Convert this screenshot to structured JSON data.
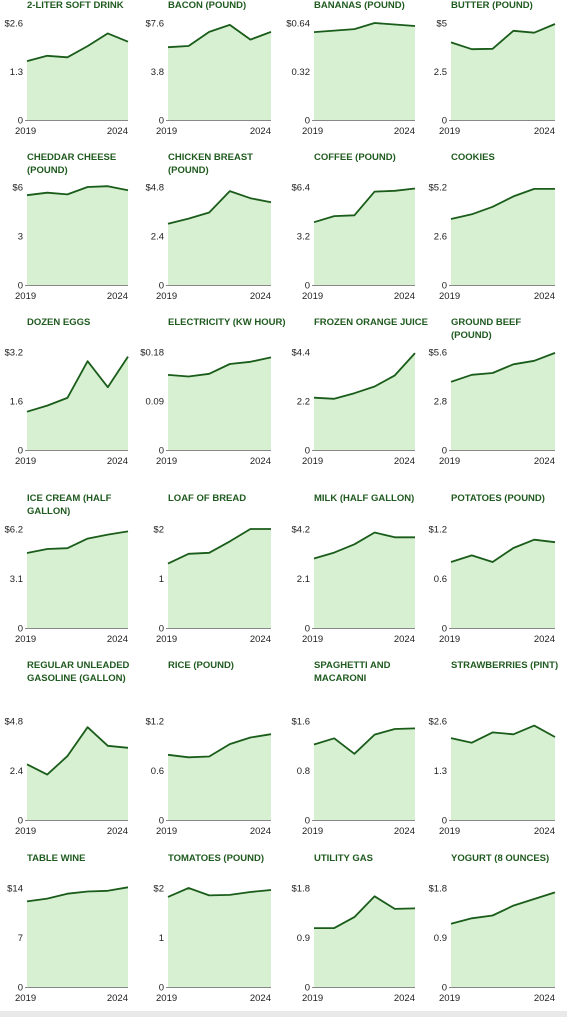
{
  "colors": {
    "line": "#1a5c1a",
    "fill": "#d7f0d2",
    "title": "#1f5a1f",
    "axis": "#888888",
    "text": "#222222"
  },
  "chart_data": [
    {
      "type": "area",
      "title": "2-liter soft drink",
      "x": [
        2019,
        2020,
        2021,
        2022,
        2023,
        2024
      ],
      "values": [
        1.58,
        1.72,
        1.68,
        1.98,
        2.32,
        2.1
      ],
      "ylim": [
        0,
        2.6
      ],
      "yticks": [
        "0",
        "1.3",
        "$2.6"
      ],
      "xticks": [
        "2019",
        "2024"
      ]
    },
    {
      "type": "area",
      "title": "Bacon (pound)",
      "x": [
        2019,
        2020,
        2021,
        2022,
        2023,
        2024
      ],
      "values": [
        5.7,
        5.8,
        6.9,
        7.45,
        6.3,
        6.9
      ],
      "ylim": [
        0,
        7.6
      ],
      "yticks": [
        "0",
        "3.8",
        "$7.6"
      ],
      "xticks": [
        "2019",
        "2024"
      ]
    },
    {
      "type": "area",
      "title": "Bananas (pound)",
      "x": [
        2019,
        2020,
        2021,
        2022,
        2023,
        2024
      ],
      "values": [
        0.58,
        0.59,
        0.6,
        0.64,
        0.63,
        0.62
      ],
      "ylim": [
        0,
        0.64
      ],
      "yticks": [
        "0",
        "0.32",
        "$0.64"
      ],
      "xticks": [
        "2019",
        "2024"
      ]
    },
    {
      "type": "area",
      "title": "Butter (pound)",
      "x": [
        2019,
        2020,
        2021,
        2022,
        2023,
        2024
      ],
      "values": [
        4.0,
        3.65,
        3.67,
        4.6,
        4.5,
        4.95
      ],
      "ylim": [
        0,
        5
      ],
      "yticks": [
        "0",
        "2.5",
        "$5"
      ],
      "xticks": [
        "2019",
        "2024"
      ]
    },
    {
      "type": "area",
      "title": "Cheddar cheese (pound)",
      "x": [
        2019,
        2020,
        2021,
        2022,
        2023,
        2024
      ],
      "values": [
        5.5,
        5.65,
        5.55,
        6.0,
        6.05,
        5.8
      ],
      "ylim": [
        0,
        6
      ],
      "yticks": [
        "0",
        "3",
        "$6"
      ],
      "xticks": [
        "2019",
        "2024"
      ]
    },
    {
      "type": "area",
      "title": "Chicken breast (pound)",
      "x": [
        2019,
        2020,
        2021,
        2022,
        2023,
        2024
      ],
      "values": [
        3.0,
        3.25,
        3.55,
        4.6,
        4.25,
        4.05
      ],
      "ylim": [
        0,
        4.8
      ],
      "yticks": [
        "0",
        "2.4",
        "$4.8"
      ],
      "xticks": [
        "2019",
        "2024"
      ]
    },
    {
      "type": "area",
      "title": "Coffee (pound)",
      "x": [
        2019,
        2020,
        2021,
        2022,
        2023,
        2024
      ],
      "values": [
        4.1,
        4.5,
        4.55,
        6.1,
        6.15,
        6.3
      ],
      "ylim": [
        0,
        6.4
      ],
      "yticks": [
        "0",
        "3.2",
        "$6.4"
      ],
      "xticks": [
        "2019",
        "2024"
      ]
    },
    {
      "type": "area",
      "title": "Cookies",
      "x": [
        2019,
        2020,
        2021,
        2022,
        2023,
        2024
      ],
      "values": [
        3.5,
        3.75,
        4.15,
        4.7,
        5.1,
        5.1
      ],
      "ylim": [
        0,
        5.2
      ],
      "yticks": [
        "0",
        "2.6",
        "$5.2"
      ],
      "xticks": [
        "2019",
        "2024"
      ]
    },
    {
      "type": "area",
      "title": "Dozen eggs",
      "x": [
        2019,
        2020,
        2021,
        2022,
        2023,
        2024
      ],
      "values": [
        1.25,
        1.45,
        1.7,
        2.9,
        2.05,
        3.05
      ],
      "ylim": [
        0,
        3.2
      ],
      "yticks": [
        "0",
        "1.6",
        "$3.2"
      ],
      "xticks": [
        "2019",
        "2024"
      ]
    },
    {
      "type": "area",
      "title": "Electricity (kW hour)",
      "x": [
        2019,
        2020,
        2021,
        2022,
        2023,
        2024
      ],
      "values": [
        0.138,
        0.135,
        0.14,
        0.158,
        0.162,
        0.17
      ],
      "ylim": [
        0,
        0.18
      ],
      "yticks": [
        "0",
        "0.09",
        "$0.18"
      ],
      "xticks": [
        "2019",
        "2024"
      ]
    },
    {
      "type": "area",
      "title": "Frozen orange juice",
      "x": [
        2019,
        2020,
        2021,
        2022,
        2023,
        2024
      ],
      "values": [
        2.35,
        2.3,
        2.55,
        2.85,
        3.35,
        4.35
      ],
      "ylim": [
        0,
        4.4
      ],
      "yticks": [
        "0",
        "2.2",
        "$4.4"
      ],
      "xticks": [
        "2019",
        "2024"
      ]
    },
    {
      "type": "area",
      "title": "Ground beef (pound)",
      "x": [
        2019,
        2020,
        2021,
        2022,
        2023,
        2024
      ],
      "values": [
        3.9,
        4.3,
        4.4,
        4.9,
        5.1,
        5.55
      ],
      "ylim": [
        0,
        5.6
      ],
      "yticks": [
        "0",
        "2.8",
        "$5.6"
      ],
      "xticks": [
        "2019",
        "2024"
      ]
    },
    {
      "type": "area",
      "title": "Ice cream (half gallon)",
      "x": [
        2019,
        2020,
        2021,
        2022,
        2023,
        2024
      ],
      "values": [
        4.7,
        4.95,
        5.0,
        5.6,
        5.85,
        6.05
      ],
      "ylim": [
        0,
        6.2
      ],
      "yticks": [
        "0",
        "3.1",
        "$6.2"
      ],
      "xticks": [
        "2019",
        "2024"
      ]
    },
    {
      "type": "area",
      "title": "Loaf of bread",
      "x": [
        2019,
        2020,
        2021,
        2022,
        2023,
        2024
      ],
      "values": [
        1.3,
        1.5,
        1.52,
        1.75,
        2.0,
        2.0
      ],
      "ylim": [
        0,
        2
      ],
      "yticks": [
        "0",
        "1",
        "$2"
      ],
      "xticks": [
        "2019",
        "2024"
      ]
    },
    {
      "type": "area",
      "title": "Milk (half gallon)",
      "x": [
        2019,
        2020,
        2021,
        2022,
        2023,
        2024
      ],
      "values": [
        2.95,
        3.2,
        3.55,
        4.05,
        3.85,
        3.85
      ],
      "ylim": [
        0,
        4.2
      ],
      "yticks": [
        "0",
        "2.1",
        "$4.2"
      ],
      "xticks": [
        "2019",
        "2024"
      ]
    },
    {
      "type": "area",
      "title": "Potatoes (pound)",
      "x": [
        2019,
        2020,
        2021,
        2022,
        2023,
        2024
      ],
      "values": [
        0.8,
        0.88,
        0.8,
        0.97,
        1.07,
        1.04
      ],
      "ylim": [
        0,
        1.2
      ],
      "yticks": [
        "0",
        "0.6",
        "$1.2"
      ],
      "xticks": [
        "2019",
        "2024"
      ]
    },
    {
      "type": "area",
      "title": "Regular unleaded gasoline (gallon)",
      "x": [
        2019,
        2020,
        2021,
        2022,
        2023,
        2024
      ],
      "values": [
        2.7,
        2.2,
        3.1,
        4.5,
        3.6,
        3.5
      ],
      "ylim": [
        0,
        4.8
      ],
      "yticks": [
        "0",
        "2.4",
        "$4.8"
      ],
      "xticks": [
        "2019",
        "2024"
      ]
    },
    {
      "type": "area",
      "title": "Rice (pound)",
      "x": [
        2019,
        2020,
        2021,
        2022,
        2023,
        2024
      ],
      "values": [
        0.79,
        0.76,
        0.77,
        0.92,
        1.0,
        1.04
      ],
      "ylim": [
        0,
        1.2
      ],
      "yticks": [
        "0",
        "0.6",
        "$1.2"
      ],
      "xticks": [
        "2019",
        "2024"
      ]
    },
    {
      "type": "area",
      "title": "Spaghetti and macaroni",
      "x": [
        2019,
        2020,
        2021,
        2022,
        2023,
        2024
      ],
      "values": [
        1.22,
        1.32,
        1.07,
        1.38,
        1.47,
        1.48
      ],
      "ylim": [
        0,
        1.6
      ],
      "yticks": [
        "0",
        "0.8",
        "$1.6"
      ],
      "xticks": [
        "2019",
        "2024"
      ]
    },
    {
      "type": "area",
      "title": "Strawberries (pint)",
      "x": [
        2019,
        2020,
        2021,
        2022,
        2023,
        2024
      ],
      "values": [
        2.15,
        2.03,
        2.3,
        2.25,
        2.48,
        2.18
      ],
      "ylim": [
        0,
        2.6
      ],
      "yticks": [
        "0",
        "1.3",
        "$2.6"
      ],
      "xticks": [
        "2019",
        "2024"
      ]
    },
    {
      "type": "area",
      "title": "Table wine",
      "x": [
        2019,
        2020,
        2021,
        2022,
        2023,
        2024
      ],
      "values": [
        12.1,
        12.5,
        13.2,
        13.5,
        13.6,
        14.1
      ],
      "ylim": [
        0,
        14
      ],
      "yticks": [
        "0",
        "7",
        "$14"
      ],
      "xticks": [
        "2019",
        "2024"
      ]
    },
    {
      "type": "area",
      "title": "Tomatoes (pound)",
      "x": [
        2019,
        2020,
        2021,
        2022,
        2023,
        2024
      ],
      "values": [
        1.82,
        2.0,
        1.85,
        1.86,
        1.92,
        1.96
      ],
      "ylim": [
        0,
        2
      ],
      "yticks": [
        "0",
        "1",
        "$2"
      ],
      "xticks": [
        "2019",
        "2024"
      ]
    },
    {
      "type": "area",
      "title": "Utility gas",
      "x": [
        2019,
        2020,
        2021,
        2022,
        2023,
        2024
      ],
      "values": [
        1.07,
        1.07,
        1.27,
        1.65,
        1.42,
        1.43
      ],
      "ylim": [
        0,
        1.8
      ],
      "yticks": [
        "0",
        "0.9",
        "$1.8"
      ],
      "xticks": [
        "2019",
        "2024"
      ]
    },
    {
      "type": "area",
      "title": "Yogurt (8 ounces)",
      "x": [
        2019,
        2020,
        2021,
        2022,
        2023,
        2024
      ],
      "values": [
        1.15,
        1.25,
        1.3,
        1.48,
        1.6,
        1.72
      ],
      "ylim": [
        0,
        1.8
      ],
      "yticks": [
        "0",
        "0.9",
        "$1.8"
      ],
      "xticks": [
        "2019",
        "2024"
      ]
    }
  ]
}
